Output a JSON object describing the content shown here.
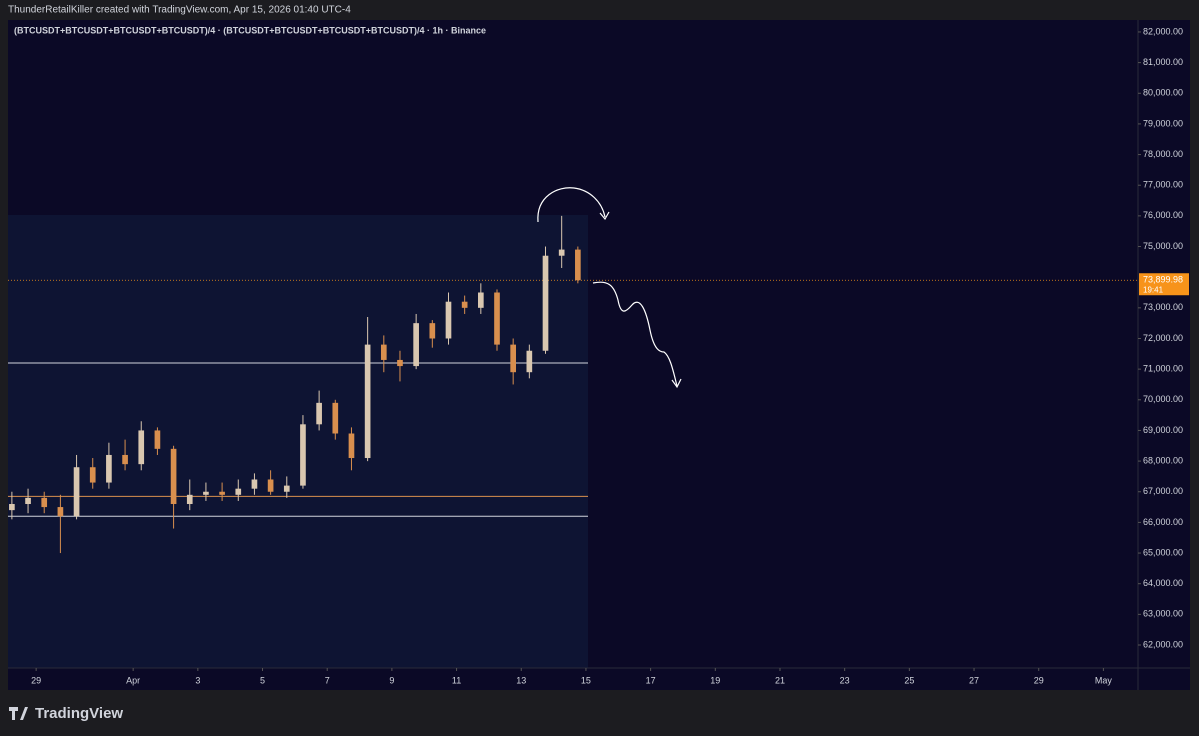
{
  "header": {
    "text": "ThunderRetailKiller created with TradingView.com, Apr 15, 2026 01:40 UTC-4"
  },
  "footer": {
    "brand": "TradingView"
  },
  "chart_data": {
    "type": "candlestick",
    "title": "(BTCUSDT+BTCUSDT+BTCUSDT+BTCUSDT)/4 · (BTCUSDT+BTCUSDT+BTCUSDT+BTCUSDT)/4 · 1h · Binance",
    "x": [
      -0.75,
      -0.25,
      0.25,
      0.75,
      1.25,
      1.75,
      2.25,
      2.75,
      3.25,
      3.75,
      4.25,
      4.75,
      5.25,
      5.75,
      6.25,
      6.75,
      7.25,
      7.75,
      8.25,
      8.75,
      9.25,
      9.75,
      10.25,
      10.75,
      11.25,
      11.75,
      12.25,
      12.75,
      13.25,
      13.75,
      14.25,
      14.75,
      15.25,
      15.75,
      16.25,
      16.75
    ],
    "open": [
      66400,
      66600,
      66800,
      66500,
      66200,
      67800,
      67300,
      68200,
      67900,
      69000,
      68400,
      66600,
      66900,
      67000,
      66900,
      67100,
      67400,
      67000,
      67200,
      69200,
      69900,
      68900,
      68100,
      71800,
      71300,
      71100,
      72500,
      72000,
      73200,
      73000,
      73500,
      71800,
      70900,
      71600,
      74700,
      74900
    ],
    "high": [
      67000,
      67100,
      67000,
      66900,
      68200,
      68100,
      68600,
      68700,
      69300,
      69100,
      68500,
      67400,
      67300,
      67300,
      67400,
      67600,
      67700,
      67500,
      69500,
      70300,
      70000,
      69100,
      72700,
      72100,
      71600,
      72800,
      72600,
      73500,
      73400,
      73800,
      73600,
      72000,
      71800,
      75000,
      76000,
      75000
    ],
    "low": [
      66100,
      66300,
      66300,
      65000,
      66100,
      67100,
      67100,
      67700,
      67700,
      68200,
      65800,
      66400,
      66700,
      66700,
      66700,
      66900,
      66900,
      66800,
      67100,
      69000,
      68700,
      67700,
      68000,
      70900,
      70600,
      71000,
      71700,
      71800,
      72800,
      72800,
      71600,
      70500,
      70700,
      71500,
      74300,
      73800
    ],
    "close": [
      66600,
      66800,
      66500,
      66200,
      67800,
      67300,
      68200,
      67900,
      69000,
      68400,
      66600,
      66900,
      67000,
      66900,
      67100,
      67400,
      67000,
      67200,
      69200,
      69900,
      68900,
      68100,
      71800,
      71300,
      71100,
      72500,
      72000,
      73200,
      73000,
      73500,
      71800,
      70900,
      71600,
      74700,
      74900,
      73900
    ],
    "up_color": "#d9c7b0",
    "down_color": "#d98f4e",
    "xlim": [
      -0.87,
      34.07
    ],
    "xticks": [
      {
        "value": 0,
        "label": "29"
      },
      {
        "value": 3,
        "label": "Apr"
      },
      {
        "value": 5,
        "label": "3"
      },
      {
        "value": 7,
        "label": "5"
      },
      {
        "value": 9,
        "label": "7"
      },
      {
        "value": 11,
        "label": "9"
      },
      {
        "value": 13,
        "label": "11"
      },
      {
        "value": 15,
        "label": "13"
      },
      {
        "value": 17,
        "label": "15"
      },
      {
        "value": 19,
        "label": "17"
      },
      {
        "value": 21,
        "label": "19"
      },
      {
        "value": 23,
        "label": "21"
      },
      {
        "value": 25,
        "label": "23"
      },
      {
        "value": 27,
        "label": "25"
      },
      {
        "value": 29,
        "label": "27"
      },
      {
        "value": 31,
        "label": "29"
      },
      {
        "value": 33,
        "label": "May"
      }
    ],
    "ylim": [
      61250,
      82390
    ],
    "yticks": [
      {
        "value": 62000,
        "label": "62,000.00"
      },
      {
        "value": 63000,
        "label": "63,000.00"
      },
      {
        "value": 64000,
        "label": "64,000.00"
      },
      {
        "value": 65000,
        "label": "65,000.00"
      },
      {
        "value": 66000,
        "label": "66,000.00"
      },
      {
        "value": 67000,
        "label": "67,000.00"
      },
      {
        "value": 68000,
        "label": "68,000.00"
      },
      {
        "value": 69000,
        "label": "69,000.00"
      },
      {
        "value": 70000,
        "label": "70,000.00"
      },
      {
        "value": 71000,
        "label": "71,000.00"
      },
      {
        "value": 72000,
        "label": "72,000.00"
      },
      {
        "value": 73000,
        "label": "73,000.00"
      },
      {
        "value": 75000,
        "label": "75,000.00"
      },
      {
        "value": 76000,
        "label": "76,000.00"
      },
      {
        "value": 77000,
        "label": "77,000.00"
      },
      {
        "value": 78000,
        "label": "78,000.00"
      },
      {
        "value": 79000,
        "label": "79,000.00"
      },
      {
        "value": 80000,
        "label": "80,000.00"
      },
      {
        "value": 81000,
        "label": "81,000.00"
      },
      {
        "value": 82000,
        "label": "82,000.00"
      }
    ],
    "last_price": {
      "value": 73899.98,
      "label": "73,899.98",
      "countdown": "19:41",
      "color": "#f7931a"
    },
    "hlines": [
      {
        "value": 71200,
        "color": "#d1d4dc"
      },
      {
        "value": 66850,
        "color": "#d98f4e"
      },
      {
        "value": 66200,
        "color": "#d1d4dc"
      }
    ]
  }
}
